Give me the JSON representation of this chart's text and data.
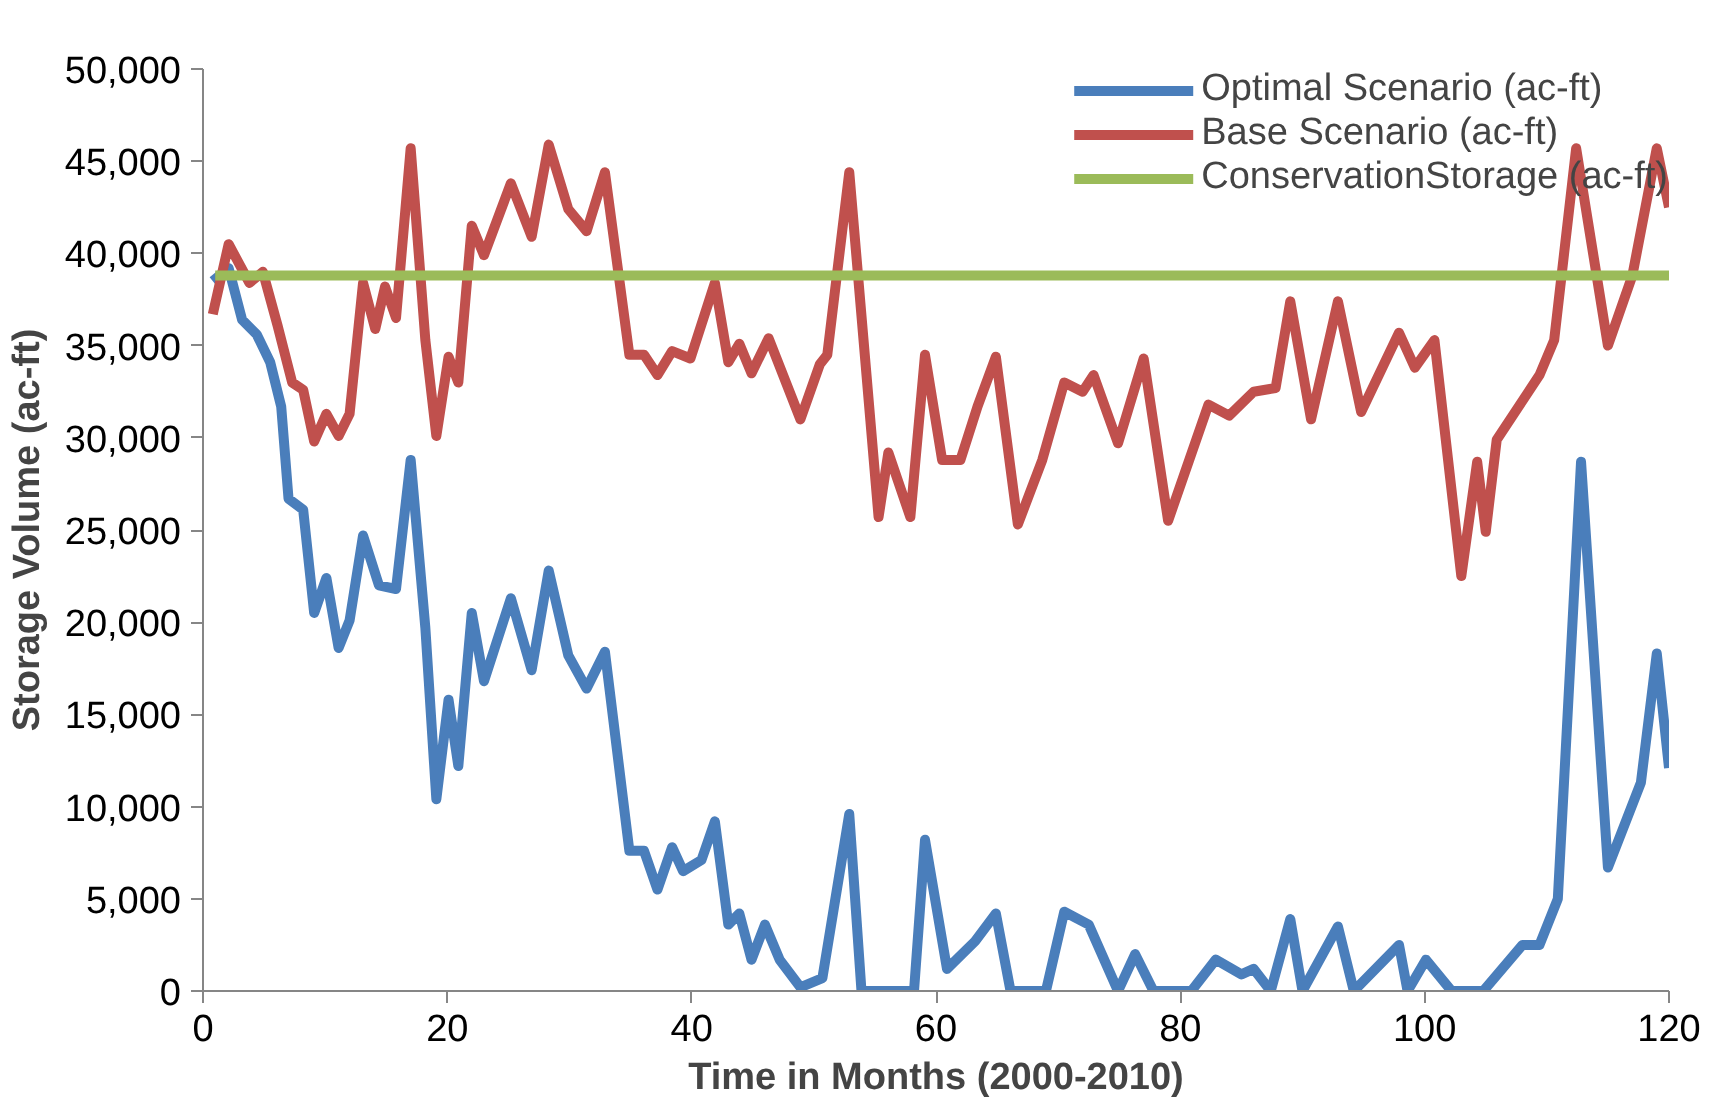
{
  "chart_data": {
    "type": "line",
    "xlabel": "Time in Months (2000-2010)",
    "ylabel": "Storage Volume (ac-ft)",
    "xlim": [
      0,
      120
    ],
    "ylim": [
      0,
      50000
    ],
    "xticks": [
      0,
      20,
      40,
      60,
      80,
      100,
      120
    ],
    "yticks": [
      {
        "value": 0,
        "label": "0"
      },
      {
        "value": 5000,
        "label": "5,000"
      },
      {
        "value": 10000,
        "label": "10,000"
      },
      {
        "value": 15000,
        "label": "15,000"
      },
      {
        "value": 20000,
        "label": "20,000"
      },
      {
        "value": 25000,
        "label": "25,000"
      },
      {
        "value": 30000,
        "label": "30,000"
      },
      {
        "value": 35000,
        "label": "35,000"
      },
      {
        "value": 40000,
        "label": "40,000"
      },
      {
        "value": 45000,
        "label": "45,000"
      },
      {
        "value": 50000,
        "label": "50,000"
      }
    ],
    "grid": false,
    "legend": "top right",
    "marker": "none",
    "line_style": "solid",
    "series": [
      {
        "name": "Optimal Scenario (ac-ft)",
        "color": "#4a7ebb",
        "x": [
          0.8,
          2.1,
          3.2,
          4.4,
          5.5,
          6.4,
          7.0,
          8.2,
          9.1,
          10.1,
          11.1,
          12,
          13.1,
          14.4,
          15.8,
          17,
          18.2,
          19.1,
          20.1,
          20.9,
          22,
          23,
          25.2,
          26.9,
          28.3,
          29.9,
          31.4,
          32.9,
          34.9,
          36.1,
          37.2,
          38.4,
          39.3,
          40.8,
          41.9,
          43,
          43.9,
          44.9,
          46,
          47.2,
          48.9,
          50.7,
          52.9,
          53.9,
          58.2,
          59.1,
          60.9,
          63.2,
          64.9,
          66.1,
          69,
          70.5,
          72.5,
          74.9,
          76.3,
          77.8,
          80.9,
          82.9,
          85,
          86,
          87.4,
          89,
          90,
          92.9,
          94.2,
          97.9,
          98.6,
          100.1,
          102.2,
          104.8,
          108,
          109.4,
          110.9,
          112.8,
          115,
          117.7,
          119,
          120
        ],
        "values": [
          38500,
          39200,
          36400,
          35600,
          34100,
          31700,
          26700,
          26100,
          20500,
          22400,
          18600,
          20100,
          24700,
          22000,
          21800,
          28800,
          19700,
          10400,
          15800,
          12200,
          20500,
          16800,
          21300,
          17400,
          22800,
          18200,
          16400,
          18400,
          7600,
          7600,
          5500,
          7800,
          6500,
          7100,
          9200,
          3600,
          4200,
          1700,
          3600,
          1700,
          200,
          700,
          9600,
          0,
          0,
          8200,
          1200,
          2700,
          4200,
          0,
          0,
          4300,
          3600,
          0,
          2000,
          0,
          0,
          1700,
          900,
          1200,
          0,
          3900,
          0,
          3500,
          0,
          2500,
          0,
          1700,
          0,
          0,
          2500,
          2500,
          5000,
          28700,
          6700,
          11300,
          18300,
          12100
        ]
      },
      {
        "name": "Base Scenario (ac-ft)",
        "color": "#c0504d",
        "x": [
          0.8,
          2.1,
          3.8,
          4.9,
          6.1,
          7.3,
          8.2,
          9.1,
          10.1,
          11.1,
          12,
          13.1,
          14.1,
          14.9,
          15.8,
          17,
          18.2,
          19.1,
          20.1,
          20.9,
          22,
          23,
          25.2,
          26.9,
          28.3,
          29.9,
          31.4,
          32.9,
          34.9,
          36.1,
          37.2,
          38.4,
          39.9,
          41.9,
          43,
          43.9,
          44.9,
          46.3,
          48.9,
          50.5,
          51.1,
          52.9,
          55.3,
          56.1,
          57.9,
          59.1,
          60.5,
          62,
          63.4,
          64.9,
          66.7,
          68.7,
          70.5,
          72,
          72.9,
          74.9,
          77,
          79,
          82.3,
          84,
          86,
          87.8,
          89,
          90.7,
          92.9,
          94.8,
          97.9,
          99.2,
          100.8,
          103,
          104.3,
          105,
          105.9,
          109.4,
          110.6,
          112.4,
          115,
          117,
          119,
          120
        ],
        "values": [
          36700,
          40500,
          38400,
          39000,
          36100,
          33000,
          32600,
          29800,
          31300,
          30100,
          31300,
          38400,
          35900,
          38200,
          36500,
          45700,
          35300,
          30100,
          34400,
          33000,
          41500,
          39900,
          43800,
          40900,
          45900,
          42400,
          41200,
          44400,
          34500,
          34500,
          33400,
          34700,
          34300,
          38400,
          34100,
          35100,
          33500,
          35400,
          31000,
          34000,
          34500,
          44400,
          25700,
          29200,
          25700,
          34500,
          28800,
          28800,
          31700,
          34400,
          25300,
          28800,
          33000,
          32500,
          33400,
          29700,
          34300,
          25500,
          31800,
          31200,
          32500,
          32700,
          37400,
          31000,
          37400,
          31400,
          35700,
          33800,
          35300,
          22500,
          28700,
          24900,
          29900,
          33400,
          35300,
          45700,
          35000,
          38800,
          45700,
          42500
        ]
      },
      {
        "name": "ConservationStorage (ac-ft)",
        "color": "#9bbb59",
        "x": [
          1,
          120
        ],
        "values": [
          38800,
          38800
        ]
      }
    ]
  }
}
